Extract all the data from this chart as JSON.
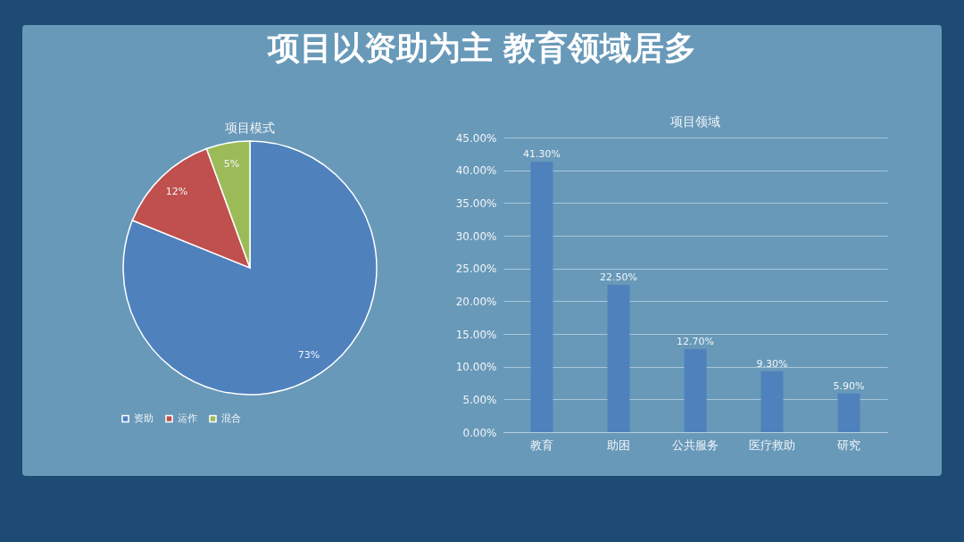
{
  "chart_data": [
    {
      "type": "other",
      "title": "项目以资助为主 教育领域居多"
    },
    {
      "type": "pie",
      "title": "项目模式",
      "categories": [
        "资助",
        "运作",
        "混合"
      ],
      "values": [
        73,
        12,
        5
      ],
      "colors": [
        "#4f81bd",
        "#c0504d",
        "#9bbb59"
      ],
      "value_labels": [
        "73%",
        "12%",
        "5%"
      ],
      "legend": "bottom"
    },
    {
      "type": "bar",
      "title": "项目领域",
      "categories": [
        "教育",
        "助困",
        "公共服务",
        "医疗救助",
        "研究"
      ],
      "values": [
        41.3,
        22.5,
        12.7,
        9.3,
        5.9
      ],
      "color": "#4f81bd",
      "value_labels": [
        "41.30%",
        "22.50%",
        "12.70%",
        "9.30%",
        "5.90%"
      ],
      "ylim": [
        0,
        45
      ],
      "yticks": [
        {
          "value": 0,
          "label": "0.00%"
        },
        {
          "value": 5,
          "label": "5.00%"
        },
        {
          "value": 10,
          "label": "10.00%"
        },
        {
          "value": 15,
          "label": "15.00%"
        },
        {
          "value": 20,
          "label": "20.00%"
        },
        {
          "value": 25,
          "label": "25.00%"
        },
        {
          "value": 30,
          "label": "30.00%"
        },
        {
          "value": 35,
          "label": "35.00%"
        },
        {
          "value": 40,
          "label": "40.00%"
        },
        {
          "value": 45,
          "label": "45.00%"
        }
      ],
      "grid": "y"
    }
  ]
}
